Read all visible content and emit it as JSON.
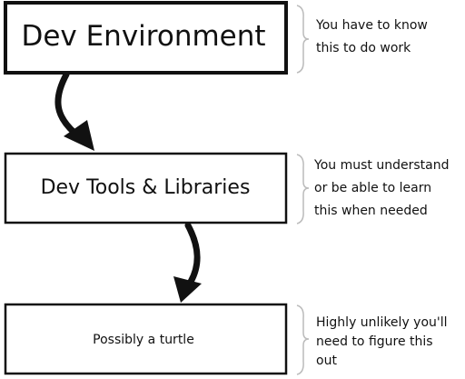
{
  "boxes": [
    {
      "label": "Dev Environment"
    },
    {
      "label": "Dev Tools & Libraries"
    },
    {
      "label": "Possibly a turtle"
    }
  ],
  "notes": [
    {
      "lines": [
        "You have to know",
        "this to do work"
      ]
    },
    {
      "lines": [
        "You must understand",
        "or be able to learn",
        "this when needed"
      ]
    },
    {
      "lines": [
        "Highly unlikely you'll",
        "need to figure this",
        "out"
      ]
    }
  ]
}
